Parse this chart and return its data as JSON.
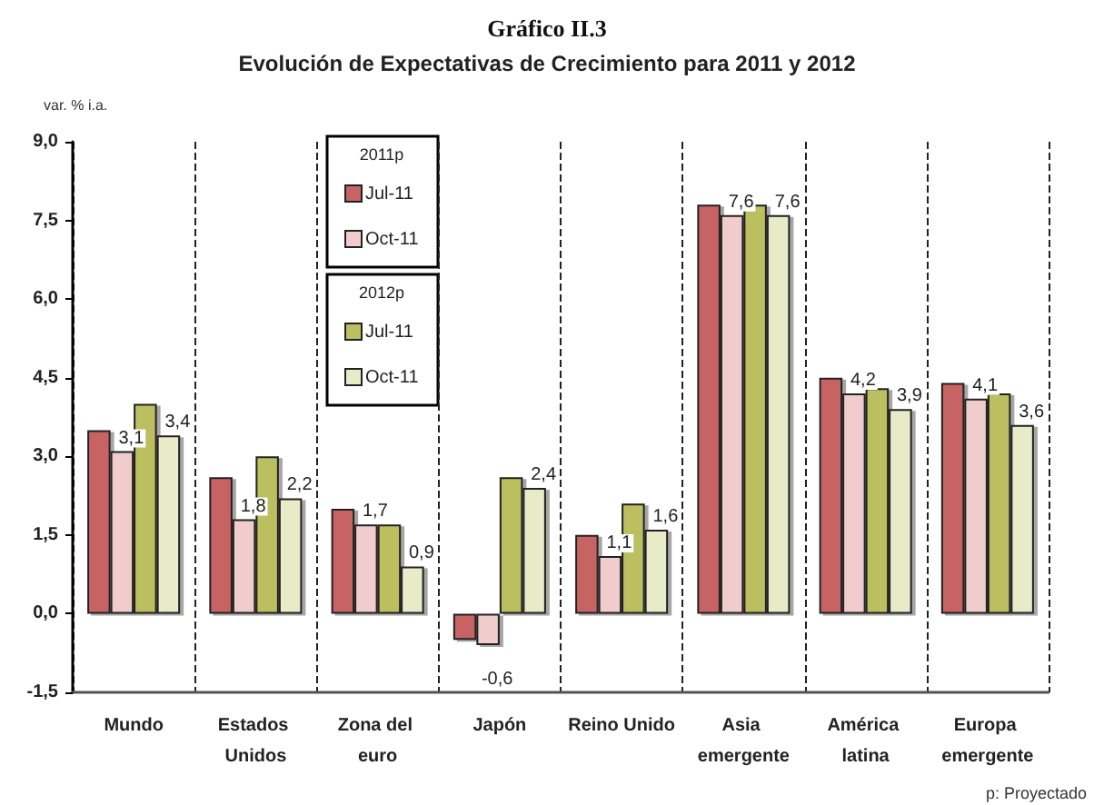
{
  "chart_data": {
    "type": "bar",
    "title": "Gráfico II.3",
    "subtitle": "Evolución de Expectativas de Crecimiento para 2011 y 2012",
    "ylabel": "var. % i.a.",
    "categories": [
      "Mundo",
      "Estados Unidos",
      "Zona del euro",
      "Japón",
      "Reino Unido",
      "Asia emergente",
      "América latina",
      "Europa emergente"
    ],
    "series": [
      {
        "name": "Jul-11",
        "color": "#c86464",
        "values": [
          3.5,
          2.6,
          2.0,
          -0.5,
          1.5,
          7.8,
          4.5,
          4.4
        ]
      },
      {
        "name": "Oct-11",
        "color": "#f0cccc",
        "values": [
          3.1,
          1.8,
          1.7,
          -0.6,
          1.1,
          7.6,
          4.2,
          4.1
        ],
        "value_labels": [
          "3,1",
          "1,8",
          "1,7",
          "-0,6",
          "1,1",
          "7,6",
          "4,2",
          "4,1"
        ]
      },
      {
        "name": "Jul-11",
        "color": "#bcbf60",
        "values": [
          4.0,
          3.0,
          1.7,
          2.6,
          2.1,
          7.8,
          4.3,
          4.2
        ]
      },
      {
        "name": "Oct-11",
        "color": "#e8ebc8",
        "values": [
          3.4,
          2.2,
          0.9,
          2.4,
          1.6,
          7.6,
          3.9,
          3.6
        ],
        "value_labels": [
          "3,4",
          "2,2",
          "0,9",
          "2,4",
          "1,6",
          "7,6",
          "3,9",
          "3,6"
        ]
      }
    ],
    "ylim": [
      -1.5,
      9
    ],
    "yticks": [
      {
        "value": -1.5,
        "label": "-1,5"
      },
      {
        "value": 0,
        "label": "0,0"
      },
      {
        "value": 1.5,
        "label": "1,5"
      },
      {
        "value": 3,
        "label": "3,0"
      },
      {
        "value": 4.5,
        "label": "4,5"
      },
      {
        "value": 6,
        "label": "6,0"
      },
      {
        "value": 7.5,
        "label": "7,5"
      },
      {
        "value": 9,
        "label": "9,0"
      }
    ],
    "grid": "x",
    "legend": "top",
    "annotations": [
      "2011p",
      "2012p",
      "p: Proyectado"
    ]
  }
}
